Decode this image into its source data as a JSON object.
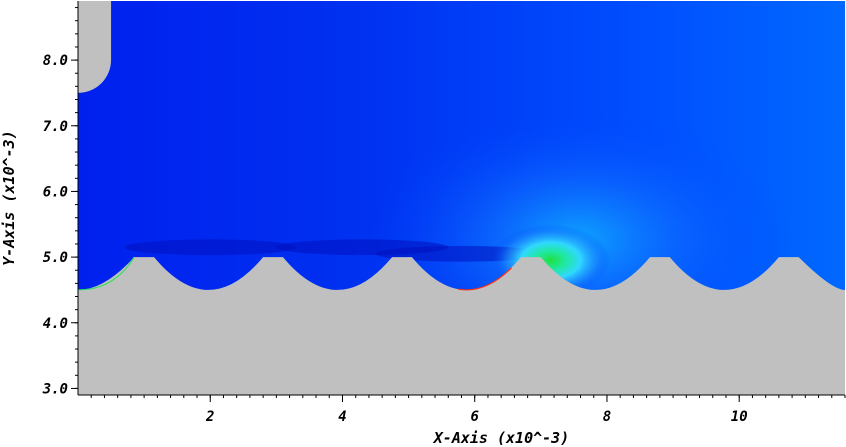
{
  "chart_data": {
    "type": "heatmap",
    "xlabel": "X-Axis (x10^-3)",
    "ylabel": "Y-Axis (x10^-3)",
    "xlim": [
      0,
      11.6
    ],
    "ylim": [
      2.9,
      8.9
    ],
    "x_ticks": [
      {
        "value": 2,
        "label": "2"
      },
      {
        "value": 4,
        "label": "4"
      },
      {
        "value": 6,
        "label": "6"
      },
      {
        "value": 8,
        "label": "8"
      },
      {
        "value": 10,
        "label": "10"
      }
    ],
    "y_ticks": [
      {
        "value": 3.0,
        "label": "3.0"
      },
      {
        "value": 4.0,
        "label": "4.0"
      },
      {
        "value": 5.0,
        "label": "5.0"
      },
      {
        "value": 6.0,
        "label": "6.0"
      },
      {
        "value": 7.0,
        "label": "7.0"
      },
      {
        "value": 8.0,
        "label": "8.0"
      }
    ],
    "colormap": [
      "#0000ff",
      "#00ffff",
      "#00ff00",
      "#ffff00",
      "#ff0000"
    ],
    "solid_color": "#c0c0c0",
    "wall": {
      "cavity_floor_y": 4.5,
      "peak_y": 5.0,
      "peak_x_centers": [
        1.0,
        2.95,
        4.9,
        6.85,
        8.8,
        10.75
      ],
      "peak_half_width": 0.15
    },
    "top_left_solid": {
      "x_max": 0.5,
      "y_min": 7.5,
      "corner_radius": 0.5
    },
    "hot_spot": {
      "x": 7.15,
      "y": 4.95,
      "peak_value": 0.55
    }
  }
}
